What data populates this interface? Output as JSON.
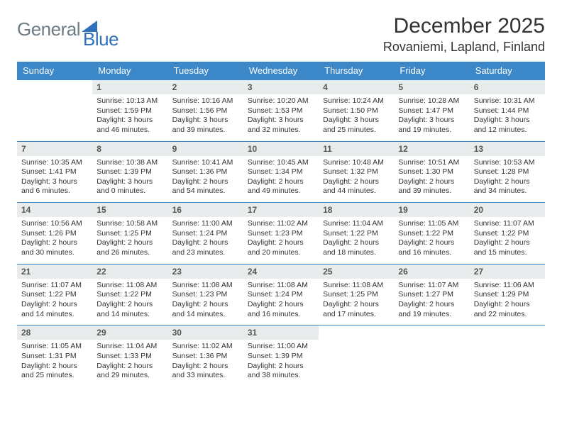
{
  "brand": {
    "gray": "General",
    "blue": "Blue"
  },
  "title": "December 2025",
  "location": "Rovaniemi, Lapland, Finland",
  "colors": {
    "header_bg": "#3b87c8",
    "header_text": "#ffffff",
    "daynum_bg": "#e9eced",
    "rule": "#3b87c8",
    "logo_gray": "#6f7b83",
    "logo_blue": "#2f71b8"
  },
  "weekdays": [
    "Sunday",
    "Monday",
    "Tuesday",
    "Wednesday",
    "Thursday",
    "Friday",
    "Saturday"
  ],
  "weeks": [
    [
      {
        "n": "",
        "lines": [
          "",
          "",
          "",
          ""
        ],
        "empty": true
      },
      {
        "n": "1",
        "lines": [
          "Sunrise: 10:13 AM",
          "Sunset: 1:59 PM",
          "Daylight: 3 hours",
          "and 46 minutes."
        ]
      },
      {
        "n": "2",
        "lines": [
          "Sunrise: 10:16 AM",
          "Sunset: 1:56 PM",
          "Daylight: 3 hours",
          "and 39 minutes."
        ]
      },
      {
        "n": "3",
        "lines": [
          "Sunrise: 10:20 AM",
          "Sunset: 1:53 PM",
          "Daylight: 3 hours",
          "and 32 minutes."
        ]
      },
      {
        "n": "4",
        "lines": [
          "Sunrise: 10:24 AM",
          "Sunset: 1:50 PM",
          "Daylight: 3 hours",
          "and 25 minutes."
        ]
      },
      {
        "n": "5",
        "lines": [
          "Sunrise: 10:28 AM",
          "Sunset: 1:47 PM",
          "Daylight: 3 hours",
          "and 19 minutes."
        ]
      },
      {
        "n": "6",
        "lines": [
          "Sunrise: 10:31 AM",
          "Sunset: 1:44 PM",
          "Daylight: 3 hours",
          "and 12 minutes."
        ]
      }
    ],
    [
      {
        "n": "7",
        "lines": [
          "Sunrise: 10:35 AM",
          "Sunset: 1:41 PM",
          "Daylight: 3 hours",
          "and 6 minutes."
        ]
      },
      {
        "n": "8",
        "lines": [
          "Sunrise: 10:38 AM",
          "Sunset: 1:39 PM",
          "Daylight: 3 hours",
          "and 0 minutes."
        ]
      },
      {
        "n": "9",
        "lines": [
          "Sunrise: 10:41 AM",
          "Sunset: 1:36 PM",
          "Daylight: 2 hours",
          "and 54 minutes."
        ]
      },
      {
        "n": "10",
        "lines": [
          "Sunrise: 10:45 AM",
          "Sunset: 1:34 PM",
          "Daylight: 2 hours",
          "and 49 minutes."
        ]
      },
      {
        "n": "11",
        "lines": [
          "Sunrise: 10:48 AM",
          "Sunset: 1:32 PM",
          "Daylight: 2 hours",
          "and 44 minutes."
        ]
      },
      {
        "n": "12",
        "lines": [
          "Sunrise: 10:51 AM",
          "Sunset: 1:30 PM",
          "Daylight: 2 hours",
          "and 39 minutes."
        ]
      },
      {
        "n": "13",
        "lines": [
          "Sunrise: 10:53 AM",
          "Sunset: 1:28 PM",
          "Daylight: 2 hours",
          "and 34 minutes."
        ]
      }
    ],
    [
      {
        "n": "14",
        "lines": [
          "Sunrise: 10:56 AM",
          "Sunset: 1:26 PM",
          "Daylight: 2 hours",
          "and 30 minutes."
        ]
      },
      {
        "n": "15",
        "lines": [
          "Sunrise: 10:58 AM",
          "Sunset: 1:25 PM",
          "Daylight: 2 hours",
          "and 26 minutes."
        ]
      },
      {
        "n": "16",
        "lines": [
          "Sunrise: 11:00 AM",
          "Sunset: 1:24 PM",
          "Daylight: 2 hours",
          "and 23 minutes."
        ]
      },
      {
        "n": "17",
        "lines": [
          "Sunrise: 11:02 AM",
          "Sunset: 1:23 PM",
          "Daylight: 2 hours",
          "and 20 minutes."
        ]
      },
      {
        "n": "18",
        "lines": [
          "Sunrise: 11:04 AM",
          "Sunset: 1:22 PM",
          "Daylight: 2 hours",
          "and 18 minutes."
        ]
      },
      {
        "n": "19",
        "lines": [
          "Sunrise: 11:05 AM",
          "Sunset: 1:22 PM",
          "Daylight: 2 hours",
          "and 16 minutes."
        ]
      },
      {
        "n": "20",
        "lines": [
          "Sunrise: 11:07 AM",
          "Sunset: 1:22 PM",
          "Daylight: 2 hours",
          "and 15 minutes."
        ]
      }
    ],
    [
      {
        "n": "21",
        "lines": [
          "Sunrise: 11:07 AM",
          "Sunset: 1:22 PM",
          "Daylight: 2 hours",
          "and 14 minutes."
        ]
      },
      {
        "n": "22",
        "lines": [
          "Sunrise: 11:08 AM",
          "Sunset: 1:22 PM",
          "Daylight: 2 hours",
          "and 14 minutes."
        ]
      },
      {
        "n": "23",
        "lines": [
          "Sunrise: 11:08 AM",
          "Sunset: 1:23 PM",
          "Daylight: 2 hours",
          "and 14 minutes."
        ]
      },
      {
        "n": "24",
        "lines": [
          "Sunrise: 11:08 AM",
          "Sunset: 1:24 PM",
          "Daylight: 2 hours",
          "and 16 minutes."
        ]
      },
      {
        "n": "25",
        "lines": [
          "Sunrise: 11:08 AM",
          "Sunset: 1:25 PM",
          "Daylight: 2 hours",
          "and 17 minutes."
        ]
      },
      {
        "n": "26",
        "lines": [
          "Sunrise: 11:07 AM",
          "Sunset: 1:27 PM",
          "Daylight: 2 hours",
          "and 19 minutes."
        ]
      },
      {
        "n": "27",
        "lines": [
          "Sunrise: 11:06 AM",
          "Sunset: 1:29 PM",
          "Daylight: 2 hours",
          "and 22 minutes."
        ]
      }
    ],
    [
      {
        "n": "28",
        "lines": [
          "Sunrise: 11:05 AM",
          "Sunset: 1:31 PM",
          "Daylight: 2 hours",
          "and 25 minutes."
        ]
      },
      {
        "n": "29",
        "lines": [
          "Sunrise: 11:04 AM",
          "Sunset: 1:33 PM",
          "Daylight: 2 hours",
          "and 29 minutes."
        ]
      },
      {
        "n": "30",
        "lines": [
          "Sunrise: 11:02 AM",
          "Sunset: 1:36 PM",
          "Daylight: 2 hours",
          "and 33 minutes."
        ]
      },
      {
        "n": "31",
        "lines": [
          "Sunrise: 11:00 AM",
          "Sunset: 1:39 PM",
          "Daylight: 2 hours",
          "and 38 minutes."
        ]
      },
      {
        "n": "",
        "lines": [
          "",
          "",
          "",
          ""
        ],
        "empty": true
      },
      {
        "n": "",
        "lines": [
          "",
          "",
          "",
          ""
        ],
        "empty": true
      },
      {
        "n": "",
        "lines": [
          "",
          "",
          "",
          ""
        ],
        "empty": true
      }
    ]
  ]
}
